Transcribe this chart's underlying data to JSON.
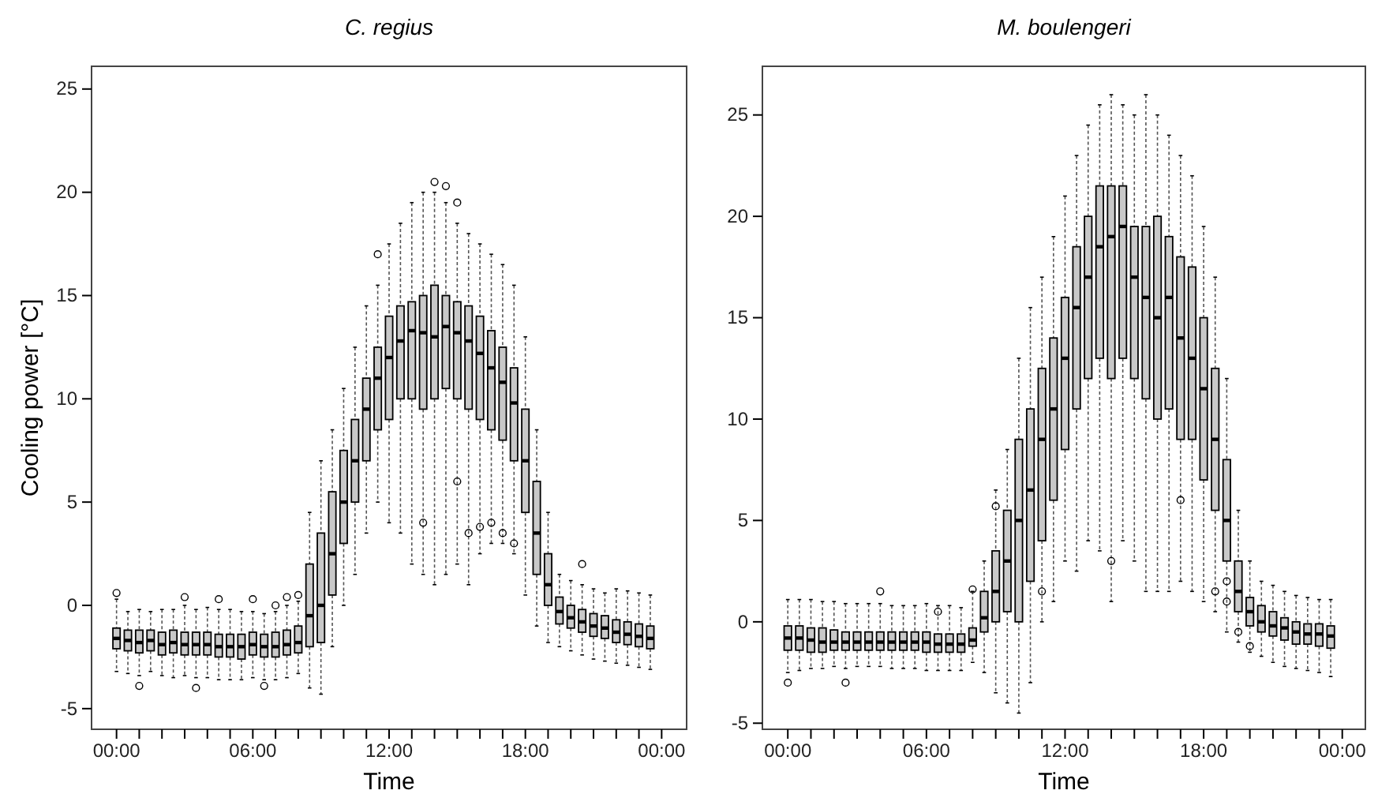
{
  "chart_data": [
    {
      "type": "box",
      "title": "C. regius",
      "xlabel": "Time",
      "ylabel": "Cooling power [°C]",
      "color": "#000000",
      "xlim": [
        -1.1,
        25.1
      ],
      "ylim": [
        -6.0,
        26.1
      ],
      "xticks": [
        {
          "value": 0,
          "label": "00:00"
        },
        {
          "value": 1,
          "label": null
        },
        {
          "value": 2,
          "label": null
        },
        {
          "value": 3,
          "label": null
        },
        {
          "value": 4,
          "label": null
        },
        {
          "value": 5,
          "label": null
        },
        {
          "value": 6,
          "label": "06:00"
        },
        {
          "value": 7,
          "label": null
        },
        {
          "value": 8,
          "label": null
        },
        {
          "value": 9,
          "label": null
        },
        {
          "value": 10,
          "label": null
        },
        {
          "value": 11,
          "label": null
        },
        {
          "value": 12,
          "label": "12:00"
        },
        {
          "value": 13,
          "label": null
        },
        {
          "value": 14,
          "label": null
        },
        {
          "value": 15,
          "label": null
        },
        {
          "value": 16,
          "label": null
        },
        {
          "value": 17,
          "label": null
        },
        {
          "value": 18,
          "label": "18:00"
        },
        {
          "value": 19,
          "label": null
        },
        {
          "value": 20,
          "label": null
        },
        {
          "value": 21,
          "label": null
        },
        {
          "value": 22,
          "label": null
        },
        {
          "value": 23,
          "label": null
        },
        {
          "value": 24,
          "label": "00:00"
        }
      ],
      "yticks": [
        -5,
        0,
        5,
        10,
        15,
        20,
        25
      ],
      "x": [
        0,
        0.5,
        1,
        1.5,
        2,
        2.5,
        3,
        3.5,
        4,
        4.5,
        5,
        5.5,
        6,
        6.5,
        7,
        7.5,
        8,
        8.5,
        9,
        9.5,
        10,
        10.5,
        11,
        11.5,
        12,
        12.5,
        13,
        13.5,
        14,
        14.5,
        15,
        15.5,
        16,
        16.5,
        17,
        17.5,
        18,
        18.5,
        19,
        19.5,
        20,
        20.5,
        21,
        21.5,
        22,
        22.5,
        23,
        23.5
      ],
      "boxes": [
        {
          "low": -3.2,
          "q1": -2.1,
          "median": -1.6,
          "q3": -1.1,
          "high": 0.3,
          "outliers": [
            0.6
          ]
        },
        {
          "low": -3.3,
          "q1": -2.2,
          "median": -1.7,
          "q3": -1.2,
          "high": -0.3
        },
        {
          "low": -3.4,
          "q1": -2.3,
          "median": -1.8,
          "q3": -1.2,
          "high": -0.2,
          "outliers": [
            -3.9
          ]
        },
        {
          "low": -3.2,
          "q1": -2.2,
          "median": -1.7,
          "q3": -1.2,
          "high": -0.3
        },
        {
          "low": -3.4,
          "q1": -2.4,
          "median": -1.9,
          "q3": -1.3,
          "high": -0.2
        },
        {
          "low": -3.5,
          "q1": -2.3,
          "median": -1.8,
          "q3": -1.2,
          "high": -0.2
        },
        {
          "low": -3.4,
          "q1": -2.4,
          "median": -1.9,
          "q3": -1.3,
          "high": 0.0,
          "outliers": [
            0.4
          ]
        },
        {
          "low": -3.5,
          "q1": -2.4,
          "median": -1.9,
          "q3": -1.3,
          "high": -0.2,
          "outliers": [
            -4.0
          ]
        },
        {
          "low": -3.5,
          "q1": -2.4,
          "median": -1.9,
          "q3": -1.3,
          "high": -0.1
        },
        {
          "low": -3.6,
          "q1": -2.5,
          "median": -2.0,
          "q3": -1.4,
          "high": -0.2,
          "outliers": [
            0.3
          ]
        },
        {
          "low": -3.6,
          "q1": -2.5,
          "median": -2.0,
          "q3": -1.4,
          "high": -0.2
        },
        {
          "low": -3.6,
          "q1": -2.6,
          "median": -2.0,
          "q3": -1.4,
          "high": -0.3
        },
        {
          "low": -3.5,
          "q1": -2.4,
          "median": -1.9,
          "q3": -1.3,
          "high": -0.3,
          "outliers": [
            0.3
          ]
        },
        {
          "low": -3.6,
          "q1": -2.5,
          "median": -2.0,
          "q3": -1.4,
          "high": -0.4,
          "outliers": [
            -3.9
          ]
        },
        {
          "low": -3.6,
          "q1": -2.5,
          "median": -2.0,
          "q3": -1.3,
          "high": -0.3,
          "outliers": [
            0.0
          ]
        },
        {
          "low": -3.5,
          "q1": -2.4,
          "median": -1.9,
          "q3": -1.2,
          "high": 0.0,
          "outliers": [
            0.4
          ]
        },
        {
          "low": -3.3,
          "q1": -2.3,
          "median": -1.8,
          "q3": -1.0,
          "high": 0.2,
          "outliers": [
            0.5
          ]
        },
        {
          "low": -4.0,
          "q1": -2.0,
          "median": -0.5,
          "q3": 2.0,
          "high": 4.5
        },
        {
          "low": -4.3,
          "q1": -1.8,
          "median": 0.0,
          "q3": 3.5,
          "high": 7.0
        },
        {
          "low": -2.0,
          "q1": 0.5,
          "median": 2.5,
          "q3": 5.5,
          "high": 8.5
        },
        {
          "low": 0.0,
          "q1": 3.0,
          "median": 5.0,
          "q3": 7.5,
          "high": 10.5
        },
        {
          "low": 1.5,
          "q1": 5.0,
          "median": 7.0,
          "q3": 9.0,
          "high": 12.5
        },
        {
          "low": 3.5,
          "q1": 7.0,
          "median": 9.5,
          "q3": 11.0,
          "high": 14.5
        },
        {
          "low": 5.0,
          "q1": 8.5,
          "median": 11.0,
          "q3": 12.5,
          "high": 15.5,
          "outliers": [
            17.0
          ]
        },
        {
          "low": 4.0,
          "q1": 9.0,
          "median": 12.0,
          "q3": 14.0,
          "high": 17.5
        },
        {
          "low": 3.5,
          "q1": 10.0,
          "median": 12.8,
          "q3": 14.5,
          "high": 18.5
        },
        {
          "low": 2.0,
          "q1": 10.0,
          "median": 13.3,
          "q3": 14.7,
          "high": 19.5
        },
        {
          "low": 1.5,
          "q1": 9.5,
          "median": 13.2,
          "q3": 15.0,
          "high": 20.0,
          "outliers": [
            4.0
          ]
        },
        {
          "low": 1.0,
          "q1": 10.0,
          "median": 13.0,
          "q3": 15.5,
          "high": 20.0,
          "outliers": [
            20.5
          ]
        },
        {
          "low": 1.5,
          "q1": 10.5,
          "median": 13.5,
          "q3": 15.0,
          "high": 19.5,
          "outliers": [
            20.3
          ]
        },
        {
          "low": 2.0,
          "q1": 10.0,
          "median": 13.2,
          "q3": 14.7,
          "high": 18.5,
          "outliers": [
            19.5,
            6.0
          ]
        },
        {
          "low": 1.0,
          "q1": 9.5,
          "median": 12.8,
          "q3": 14.5,
          "high": 18.0,
          "outliers": [
            3.5
          ]
        },
        {
          "low": 2.5,
          "q1": 9.0,
          "median": 12.2,
          "q3": 14.0,
          "high": 17.5,
          "outliers": [
            3.8
          ]
        },
        {
          "low": 3.0,
          "q1": 8.5,
          "median": 11.5,
          "q3": 13.3,
          "high": 17.0,
          "outliers": [
            4.0
          ]
        },
        {
          "low": 3.0,
          "q1": 8.0,
          "median": 10.8,
          "q3": 12.5,
          "high": 16.5,
          "outliers": [
            3.5
          ]
        },
        {
          "low": 2.5,
          "q1": 7.0,
          "median": 9.8,
          "q3": 11.5,
          "high": 15.5,
          "outliers": [
            3.0
          ]
        },
        {
          "low": 0.5,
          "q1": 4.5,
          "median": 7.0,
          "q3": 9.5,
          "high": 13.0
        },
        {
          "low": -1.0,
          "q1": 1.5,
          "median": 3.5,
          "q3": 6.0,
          "high": 8.5
        },
        {
          "low": -1.8,
          "q1": 0.0,
          "median": 1.0,
          "q3": 2.5,
          "high": 4.5
        },
        {
          "low": -2.0,
          "q1": -0.9,
          "median": -0.3,
          "q3": 0.4,
          "high": 1.5
        },
        {
          "low": -2.2,
          "q1": -1.1,
          "median": -0.6,
          "q3": 0.0,
          "high": 1.2
        },
        {
          "low": -2.4,
          "q1": -1.3,
          "median": -0.8,
          "q3": -0.2,
          "high": 1.0,
          "outliers": [
            2.0
          ]
        },
        {
          "low": -2.6,
          "q1": -1.5,
          "median": -1.0,
          "q3": -0.4,
          "high": 0.8
        },
        {
          "low": -2.7,
          "q1": -1.6,
          "median": -1.1,
          "q3": -0.5,
          "high": 0.6
        },
        {
          "low": -2.8,
          "q1": -1.8,
          "median": -1.3,
          "q3": -0.7,
          "high": 0.8
        },
        {
          "low": -2.9,
          "q1": -1.9,
          "median": -1.4,
          "q3": -0.8,
          "high": 0.7
        },
        {
          "low": -3.0,
          "q1": -2.0,
          "median": -1.5,
          "q3": -0.9,
          "high": 0.6
        },
        {
          "low": -3.1,
          "q1": -2.1,
          "median": -1.6,
          "q3": -1.0,
          "high": 0.5
        }
      ]
    },
    {
      "type": "box",
      "title": "M. boulengeri",
      "xlabel": "Time",
      "color": "#000000",
      "xlim": [
        -1.1,
        25.0
      ],
      "ylim": [
        -5.3,
        27.4
      ],
      "xticks": [
        {
          "value": 0,
          "label": "00:00"
        },
        {
          "value": 1,
          "label": null
        },
        {
          "value": 2,
          "label": null
        },
        {
          "value": 3,
          "label": null
        },
        {
          "value": 4,
          "label": null
        },
        {
          "value": 5,
          "label": null
        },
        {
          "value": 6,
          "label": "06:00"
        },
        {
          "value": 7,
          "label": null
        },
        {
          "value": 8,
          "label": null
        },
        {
          "value": 9,
          "label": null
        },
        {
          "value": 10,
          "label": null
        },
        {
          "value": 11,
          "label": null
        },
        {
          "value": 12,
          "label": "12:00"
        },
        {
          "value": 13,
          "label": null
        },
        {
          "value": 14,
          "label": null
        },
        {
          "value": 15,
          "label": null
        },
        {
          "value": 16,
          "label": null
        },
        {
          "value": 17,
          "label": null
        },
        {
          "value": 18,
          "label": "18:00"
        },
        {
          "value": 19,
          "label": null
        },
        {
          "value": 20,
          "label": null
        },
        {
          "value": 21,
          "label": null
        },
        {
          "value": 22,
          "label": null
        },
        {
          "value": 23,
          "label": null
        },
        {
          "value": 24,
          "label": "00:00"
        }
      ],
      "yticks": [
        -5,
        0,
        5,
        10,
        15,
        20,
        25
      ],
      "x": [
        0,
        0.5,
        1,
        1.5,
        2,
        2.5,
        3,
        3.5,
        4,
        4.5,
        5,
        5.5,
        6,
        6.5,
        7,
        7.5,
        8,
        8.5,
        9,
        9.5,
        10,
        10.5,
        11,
        11.5,
        12,
        12.5,
        13,
        13.5,
        14,
        14.5,
        15,
        15.5,
        16,
        16.5,
        17,
        17.5,
        18,
        18.5,
        19,
        19.5,
        20,
        20.5,
        21,
        21.5,
        22,
        22.5,
        23,
        23.5
      ],
      "boxes": [
        {
          "low": -2.5,
          "q1": -1.4,
          "median": -0.8,
          "q3": -0.2,
          "high": 1.1,
          "outliers": [
            -3.0
          ]
        },
        {
          "low": -2.4,
          "q1": -1.4,
          "median": -0.8,
          "q3": -0.2,
          "high": 1.1
        },
        {
          "low": -2.3,
          "q1": -1.5,
          "median": -0.9,
          "q3": -0.3,
          "high": 1.1
        },
        {
          "low": -2.3,
          "q1": -1.5,
          "median": -1.0,
          "q3": -0.3,
          "high": 1.0
        },
        {
          "low": -2.2,
          "q1": -1.4,
          "median": -1.0,
          "q3": -0.4,
          "high": 1.0
        },
        {
          "low": -2.3,
          "q1": -1.4,
          "median": -1.0,
          "q3": -0.5,
          "high": 0.9,
          "outliers": [
            -3.0
          ]
        },
        {
          "low": -2.2,
          "q1": -1.4,
          "median": -1.0,
          "q3": -0.5,
          "high": 0.9
        },
        {
          "low": -2.2,
          "q1": -1.4,
          "median": -1.0,
          "q3": -0.5,
          "high": 0.9
        },
        {
          "low": -2.2,
          "q1": -1.4,
          "median": -1.0,
          "q3": -0.5,
          "high": 0.9,
          "outliers": [
            1.5
          ]
        },
        {
          "low": -2.3,
          "q1": -1.4,
          "median": -1.0,
          "q3": -0.5,
          "high": 0.8
        },
        {
          "low": -2.3,
          "q1": -1.4,
          "median": -1.0,
          "q3": -0.5,
          "high": 0.8
        },
        {
          "low": -2.3,
          "q1": -1.4,
          "median": -1.0,
          "q3": -0.5,
          "high": 0.8
        },
        {
          "low": -2.4,
          "q1": -1.5,
          "median": -1.0,
          "q3": -0.5,
          "high": 0.9
        },
        {
          "low": -2.4,
          "q1": -1.5,
          "median": -1.1,
          "q3": -0.6,
          "high": 0.8,
          "outliers": [
            0.5
          ]
        },
        {
          "low": -2.4,
          "q1": -1.5,
          "median": -1.1,
          "q3": -0.6,
          "high": 0.8
        },
        {
          "low": -2.4,
          "q1": -1.5,
          "median": -1.1,
          "q3": -0.6,
          "high": 0.7
        },
        {
          "low": -2.0,
          "q1": -1.2,
          "median": -0.9,
          "q3": -0.3,
          "high": 1.5,
          "outliers": [
            1.6
          ]
        },
        {
          "low": -2.5,
          "q1": -0.5,
          "median": 0.2,
          "q3": 1.5,
          "high": 3.0
        },
        {
          "low": -3.5,
          "q1": 0.0,
          "median": 1.5,
          "q3": 3.5,
          "high": 6.5,
          "outliers": [
            5.7
          ]
        },
        {
          "low": -4.0,
          "q1": 0.5,
          "median": 3.0,
          "q3": 5.5,
          "high": 8.5
        },
        {
          "low": -4.5,
          "q1": 0.0,
          "median": 5.0,
          "q3": 9.0,
          "high": 13.0
        },
        {
          "low": -3.0,
          "q1": 2.0,
          "median": 6.5,
          "q3": 10.5,
          "high": 15.5
        },
        {
          "low": 0.0,
          "q1": 4.0,
          "median": 9.0,
          "q3": 12.5,
          "high": 17.0,
          "outliers": [
            1.5
          ]
        },
        {
          "low": 1.0,
          "q1": 6.0,
          "median": 10.5,
          "q3": 14.0,
          "high": 19.0
        },
        {
          "low": 3.0,
          "q1": 8.5,
          "median": 13.0,
          "q3": 16.0,
          "high": 21.0
        },
        {
          "low": 2.5,
          "q1": 10.5,
          "median": 15.5,
          "q3": 18.5,
          "high": 23.0
        },
        {
          "low": 4.0,
          "q1": 12.0,
          "median": 17.0,
          "q3": 20.0,
          "high": 24.5
        },
        {
          "low": 3.5,
          "q1": 13.0,
          "median": 18.5,
          "q3": 21.5,
          "high": 25.5
        },
        {
          "low": 1.0,
          "q1": 12.0,
          "median": 19.0,
          "q3": 21.5,
          "high": 26.0,
          "outliers": [
            3.0
          ]
        },
        {
          "low": 4.0,
          "q1": 13.0,
          "median": 19.5,
          "q3": 21.5,
          "high": 25.5
        },
        {
          "low": 3.0,
          "q1": 12.0,
          "median": 17.0,
          "q3": 19.5,
          "high": 25.0
        },
        {
          "low": 1.5,
          "q1": 11.0,
          "median": 16.0,
          "q3": 19.5,
          "high": 26.0
        },
        {
          "low": 1.5,
          "q1": 10.0,
          "median": 15.0,
          "q3": 20.0,
          "high": 25.0
        },
        {
          "low": 1.5,
          "q1": 10.5,
          "median": 16.0,
          "q3": 19.0,
          "high": 24.0
        },
        {
          "low": 2.0,
          "q1": 9.0,
          "median": 14.0,
          "q3": 18.0,
          "high": 23.0,
          "outliers": [
            6.0
          ]
        },
        {
          "low": 1.5,
          "q1": 9.0,
          "median": 13.0,
          "q3": 17.5,
          "high": 22.0
        },
        {
          "low": 1.0,
          "q1": 7.0,
          "median": 11.5,
          "q3": 15.0,
          "high": 19.5
        },
        {
          "low": 0.5,
          "q1": 5.5,
          "median": 9.0,
          "q3": 12.5,
          "high": 17.0,
          "outliers": [
            1.5
          ]
        },
        {
          "low": -0.5,
          "q1": 3.0,
          "median": 5.0,
          "q3": 8.0,
          "high": 12.0,
          "outliers": [
            2.0,
            1.0
          ]
        },
        {
          "low": -1.0,
          "q1": 0.5,
          "median": 1.5,
          "q3": 3.0,
          "high": 5.5,
          "outliers": [
            -0.5
          ]
        },
        {
          "low": -1.5,
          "q1": -0.2,
          "median": 0.5,
          "q3": 1.2,
          "high": 3.0,
          "outliers": [
            -1.2
          ]
        },
        {
          "low": -1.7,
          "q1": -0.5,
          "median": 0.0,
          "q3": 0.8,
          "high": 2.0
        },
        {
          "low": -2.0,
          "q1": -0.7,
          "median": -0.2,
          "q3": 0.5,
          "high": 1.8
        },
        {
          "low": -2.2,
          "q1": -0.9,
          "median": -0.3,
          "q3": 0.2,
          "high": 1.5
        },
        {
          "low": -2.3,
          "q1": -1.1,
          "median": -0.5,
          "q3": 0.0,
          "high": 1.3
        },
        {
          "low": -2.4,
          "q1": -1.1,
          "median": -0.6,
          "q3": -0.1,
          "high": 1.2
        },
        {
          "low": -2.5,
          "q1": -1.2,
          "median": -0.6,
          "q3": -0.1,
          "high": 1.1
        },
        {
          "low": -2.7,
          "q1": -1.3,
          "median": -0.7,
          "q3": -0.2,
          "high": 1.1
        }
      ]
    }
  ]
}
